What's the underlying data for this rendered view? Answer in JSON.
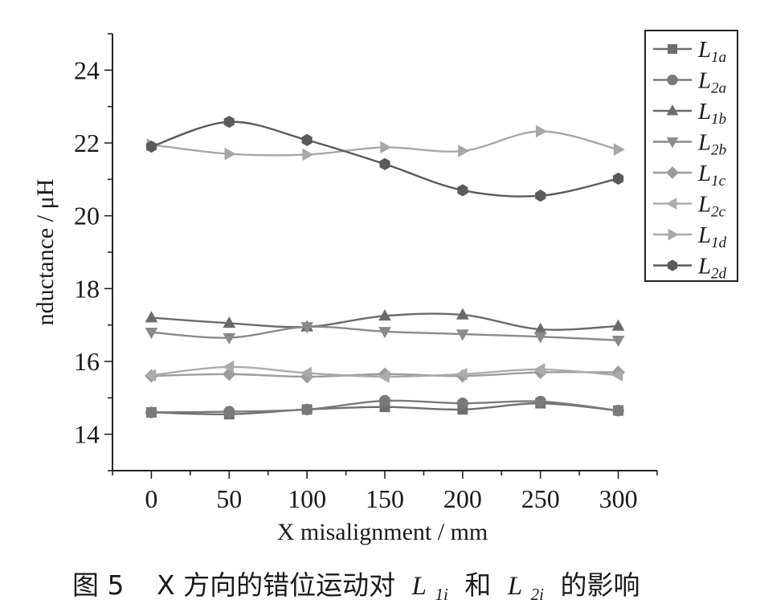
{
  "chart_data": {
    "type": "line",
    "xlabel": "X misalignment / mm",
    "ylabel": "nductance / μH",
    "x": [
      0,
      50,
      100,
      150,
      200,
      250,
      300
    ],
    "xlim": [
      -25,
      325
    ],
    "ylim": [
      13,
      25
    ],
    "xticks": [
      0,
      50,
      100,
      150,
      200,
      250,
      300
    ],
    "yticks": [
      14,
      16,
      18,
      20,
      22,
      24
    ],
    "grid": false,
    "legend_position": "top-right",
    "series": [
      {
        "name": "L1a",
        "label_main": "L",
        "label_sub": "1a",
        "marker": "square",
        "color": "#6e6e6e",
        "values": [
          14.6,
          14.55,
          14.68,
          14.75,
          14.68,
          14.85,
          14.65
        ]
      },
      {
        "name": "L2a",
        "label_main": "L",
        "label_sub": "2a",
        "marker": "circle",
        "color": "#7a7a7a",
        "values": [
          14.6,
          14.62,
          14.68,
          14.92,
          14.85,
          14.9,
          14.65
        ]
      },
      {
        "name": "L1b",
        "label_main": "L",
        "label_sub": "1b",
        "marker": "triangle-up",
        "color": "#6a6a6a",
        "values": [
          17.2,
          17.05,
          16.95,
          17.25,
          17.28,
          16.88,
          16.97
        ]
      },
      {
        "name": "L2b",
        "label_main": "L",
        "label_sub": "2b",
        "marker": "triangle-down",
        "color": "#8a8a8a",
        "values": [
          16.8,
          16.65,
          16.95,
          16.82,
          16.75,
          16.68,
          16.58
        ]
      },
      {
        "name": "L1c",
        "label_main": "L",
        "label_sub": "1c",
        "marker": "diamond",
        "color": "#9c9c9c",
        "values": [
          15.6,
          15.65,
          15.58,
          15.65,
          15.6,
          15.7,
          15.7
        ]
      },
      {
        "name": "L2c",
        "label_main": "L",
        "label_sub": "2c",
        "marker": "triangle-left",
        "color": "#ababab",
        "values": [
          15.62,
          15.85,
          15.68,
          15.58,
          15.65,
          15.78,
          15.62
        ]
      },
      {
        "name": "L1d",
        "label_main": "L",
        "label_sub": "1d",
        "marker": "triangle-right",
        "color": "#a8a8a8",
        "values": [
          21.95,
          21.7,
          21.68,
          21.88,
          21.78,
          22.32,
          21.82
        ]
      },
      {
        "name": "L2d",
        "label_main": "L",
        "label_sub": "2d",
        "marker": "hexagon",
        "color": "#5a5a5a",
        "values": [
          21.9,
          22.58,
          22.08,
          21.42,
          20.7,
          20.55,
          21.02
        ]
      }
    ]
  },
  "caption": {
    "figure_label": "图 5",
    "prefix": "X 方向的错位运动对",
    "term1_main": "L",
    "term1_sub": "1i",
    "connector": "和",
    "term2_main": "L",
    "term2_sub": "2i",
    "suffix": "的影响"
  }
}
